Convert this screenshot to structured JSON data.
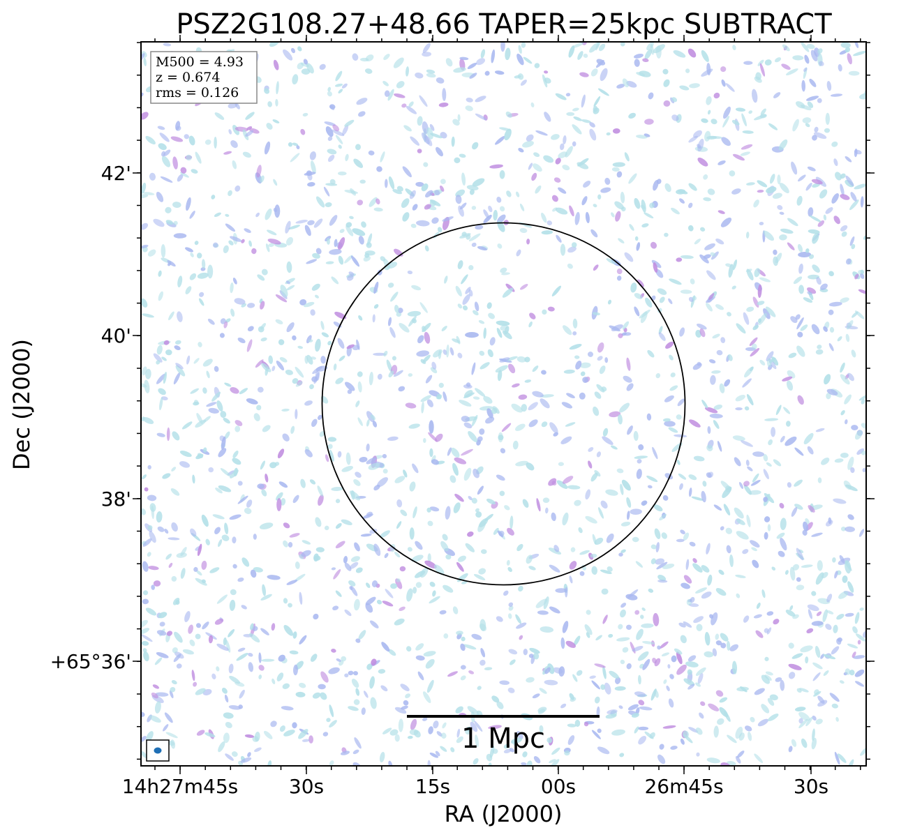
{
  "figure": {
    "title": "PSZ2G108.27+48.66 TAPER=25kpc SUBTRACT",
    "xlabel": "RA (J2000)",
    "ylabel": "Dec (J2000)",
    "x_ticks": [
      "14h27m45s",
      "30s",
      "15s",
      "00s",
      "26m45s",
      "30s"
    ],
    "y_ticks": [
      "42'",
      "40'",
      "38'",
      "+65°36'"
    ],
    "info_box": {
      "line1": "M500 = 4.93",
      "line2": "z = 0.674",
      "line3": "rms = 0.126"
    },
    "scale_bar_label": "1 Mpc",
    "colors": {
      "noise_light": "#b3e0e8",
      "noise_mid": "#a9b8f0",
      "noise_strong": "#c08ee0",
      "beam": "#1f6fb5",
      "circle": "#000000"
    }
  }
}
